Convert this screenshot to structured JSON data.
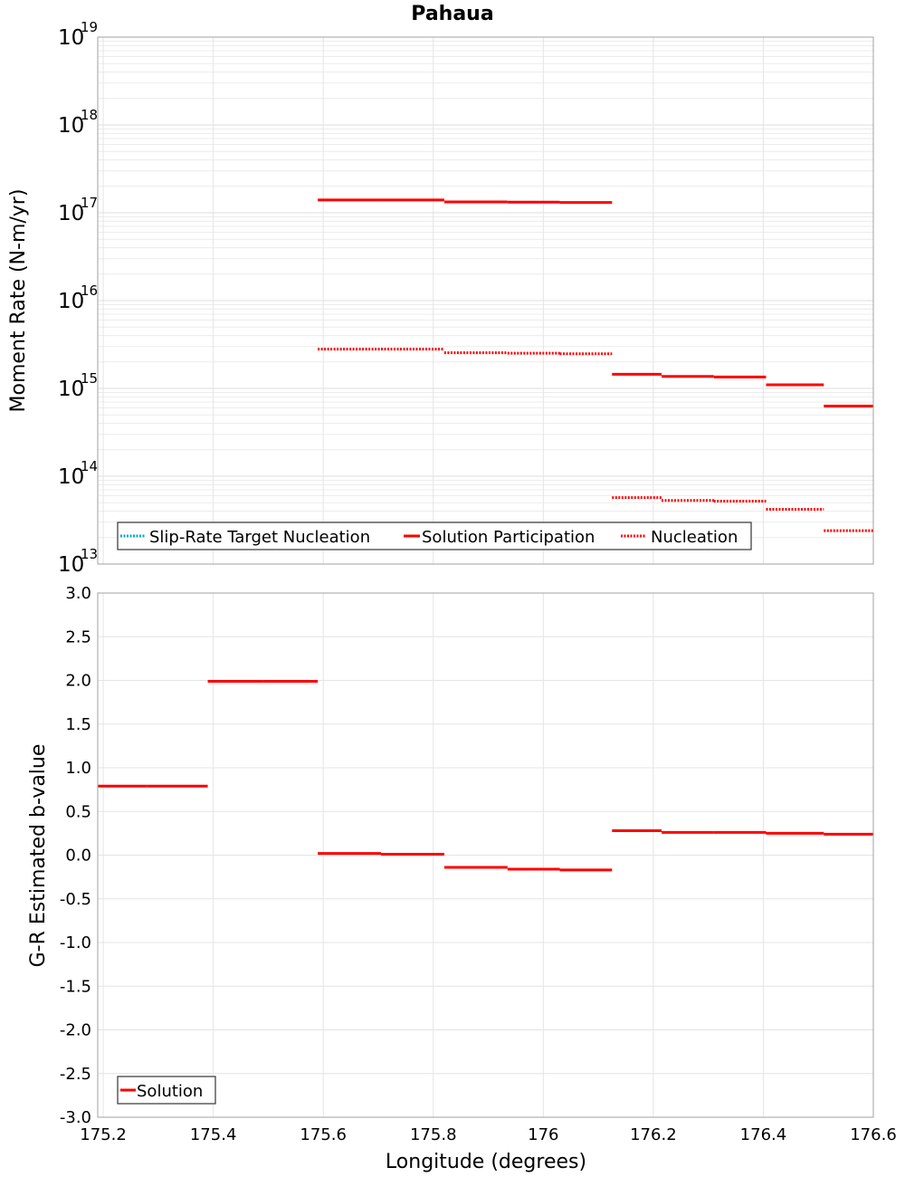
{
  "chart_data": [
    {
      "type": "line",
      "title": "Pahaua",
      "ylabel": "Moment Rate (N-m/yr)",
      "xlabel": "",
      "yscale": "log",
      "ylim_exp": [
        13,
        19
      ],
      "ytick_base": "10",
      "ytick_exps": [
        "13",
        "14",
        "15",
        "16",
        "17",
        "18",
        "19"
      ],
      "xlim": [
        175.19,
        176.6
      ],
      "grid": true,
      "legend_position": "bottom-left",
      "legend": [
        "Slip-Rate Target Nucleation",
        "Solution Participation",
        "Nucleation"
      ],
      "series": [
        {
          "name": "Slip-Rate Target Nucleation",
          "style": "dotted",
          "color": "#00aacc",
          "segments": []
        },
        {
          "name": "Solution Participation",
          "style": "solid",
          "color": "#ff0000",
          "segments": [
            {
              "x0": 175.59,
              "x1": 175.705,
              "y": 1.4e+17
            },
            {
              "x0": 175.705,
              "x1": 175.82,
              "y": 1.4e+17
            },
            {
              "x0": 175.82,
              "x1": 175.935,
              "y": 1.33e+17
            },
            {
              "x0": 175.935,
              "x1": 176.03,
              "y": 1.32e+17
            },
            {
              "x0": 176.03,
              "x1": 176.125,
              "y": 1.31e+17
            },
            {
              "x0": 176.125,
              "x1": 176.215,
              "y": 1450000000000000.0
            },
            {
              "x0": 176.215,
              "x1": 176.31,
              "y": 1370000000000000.0
            },
            {
              "x0": 176.31,
              "x1": 176.405,
              "y": 1350000000000000.0
            },
            {
              "x0": 176.405,
              "x1": 176.51,
              "y": 1100000000000000.0
            },
            {
              "x0": 176.51,
              "x1": 176.6,
              "y": 630000000000000.0
            }
          ]
        },
        {
          "name": "Nucleation",
          "style": "dotted",
          "color": "#ff0000",
          "segments": [
            {
              "x0": 175.59,
              "x1": 175.705,
              "y": 2800000000000000.0
            },
            {
              "x0": 175.705,
              "x1": 175.82,
              "y": 2800000000000000.0
            },
            {
              "x0": 175.82,
              "x1": 175.935,
              "y": 2550000000000000.0
            },
            {
              "x0": 175.935,
              "x1": 176.03,
              "y": 2520000000000000.0
            },
            {
              "x0": 176.03,
              "x1": 176.125,
              "y": 2480000000000000.0
            },
            {
              "x0": 176.125,
              "x1": 176.215,
              "y": 57000000000000.0
            },
            {
              "x0": 176.215,
              "x1": 176.31,
              "y": 53000000000000.0
            },
            {
              "x0": 176.31,
              "x1": 176.405,
              "y": 52000000000000.0
            },
            {
              "x0": 176.405,
              "x1": 176.51,
              "y": 42000000000000.0
            },
            {
              "x0": 176.51,
              "x1": 176.6,
              "y": 24000000000000.0
            }
          ]
        }
      ]
    },
    {
      "type": "line",
      "title": "",
      "ylabel": "G-R Estimated b-value",
      "xlabel": "Longitude (degrees)",
      "ylim": [
        -3.0,
        3.0
      ],
      "yticks": [
        "-3.0",
        "-2.5",
        "-2.0",
        "-1.5",
        "-1.0",
        "-0.5",
        "0.0",
        "0.5",
        "1.0",
        "1.5",
        "2.0",
        "2.5",
        "3.0"
      ],
      "xlim": [
        175.19,
        176.6
      ],
      "xticks": [
        "175.2",
        "175.4",
        "175.6",
        "175.8",
        "176",
        "176.2",
        "176.4",
        "176.6"
      ],
      "grid": true,
      "legend_position": "bottom-left",
      "legend": [
        "Solution"
      ],
      "series": [
        {
          "name": "Solution",
          "style": "solid",
          "color": "#ff0000",
          "segments": [
            {
              "x0": 175.19,
              "x1": 175.28,
              "y": 0.79
            },
            {
              "x0": 175.28,
              "x1": 175.39,
              "y": 0.79
            },
            {
              "x0": 175.39,
              "x1": 175.49,
              "y": 1.99
            },
            {
              "x0": 175.49,
              "x1": 175.59,
              "y": 1.99
            },
            {
              "x0": 175.59,
              "x1": 175.705,
              "y": 0.02
            },
            {
              "x0": 175.705,
              "x1": 175.82,
              "y": 0.01
            },
            {
              "x0": 175.82,
              "x1": 175.935,
              "y": -0.14
            },
            {
              "x0": 175.935,
              "x1": 176.03,
              "y": -0.16
            },
            {
              "x0": 176.03,
              "x1": 176.125,
              "y": -0.17
            },
            {
              "x0": 176.125,
              "x1": 176.215,
              "y": 0.28
            },
            {
              "x0": 176.215,
              "x1": 176.31,
              "y": 0.26
            },
            {
              "x0": 176.31,
              "x1": 176.405,
              "y": 0.26
            },
            {
              "x0": 176.405,
              "x1": 176.51,
              "y": 0.25
            },
            {
              "x0": 176.51,
              "x1": 176.6,
              "y": 0.24
            }
          ]
        }
      ]
    }
  ]
}
